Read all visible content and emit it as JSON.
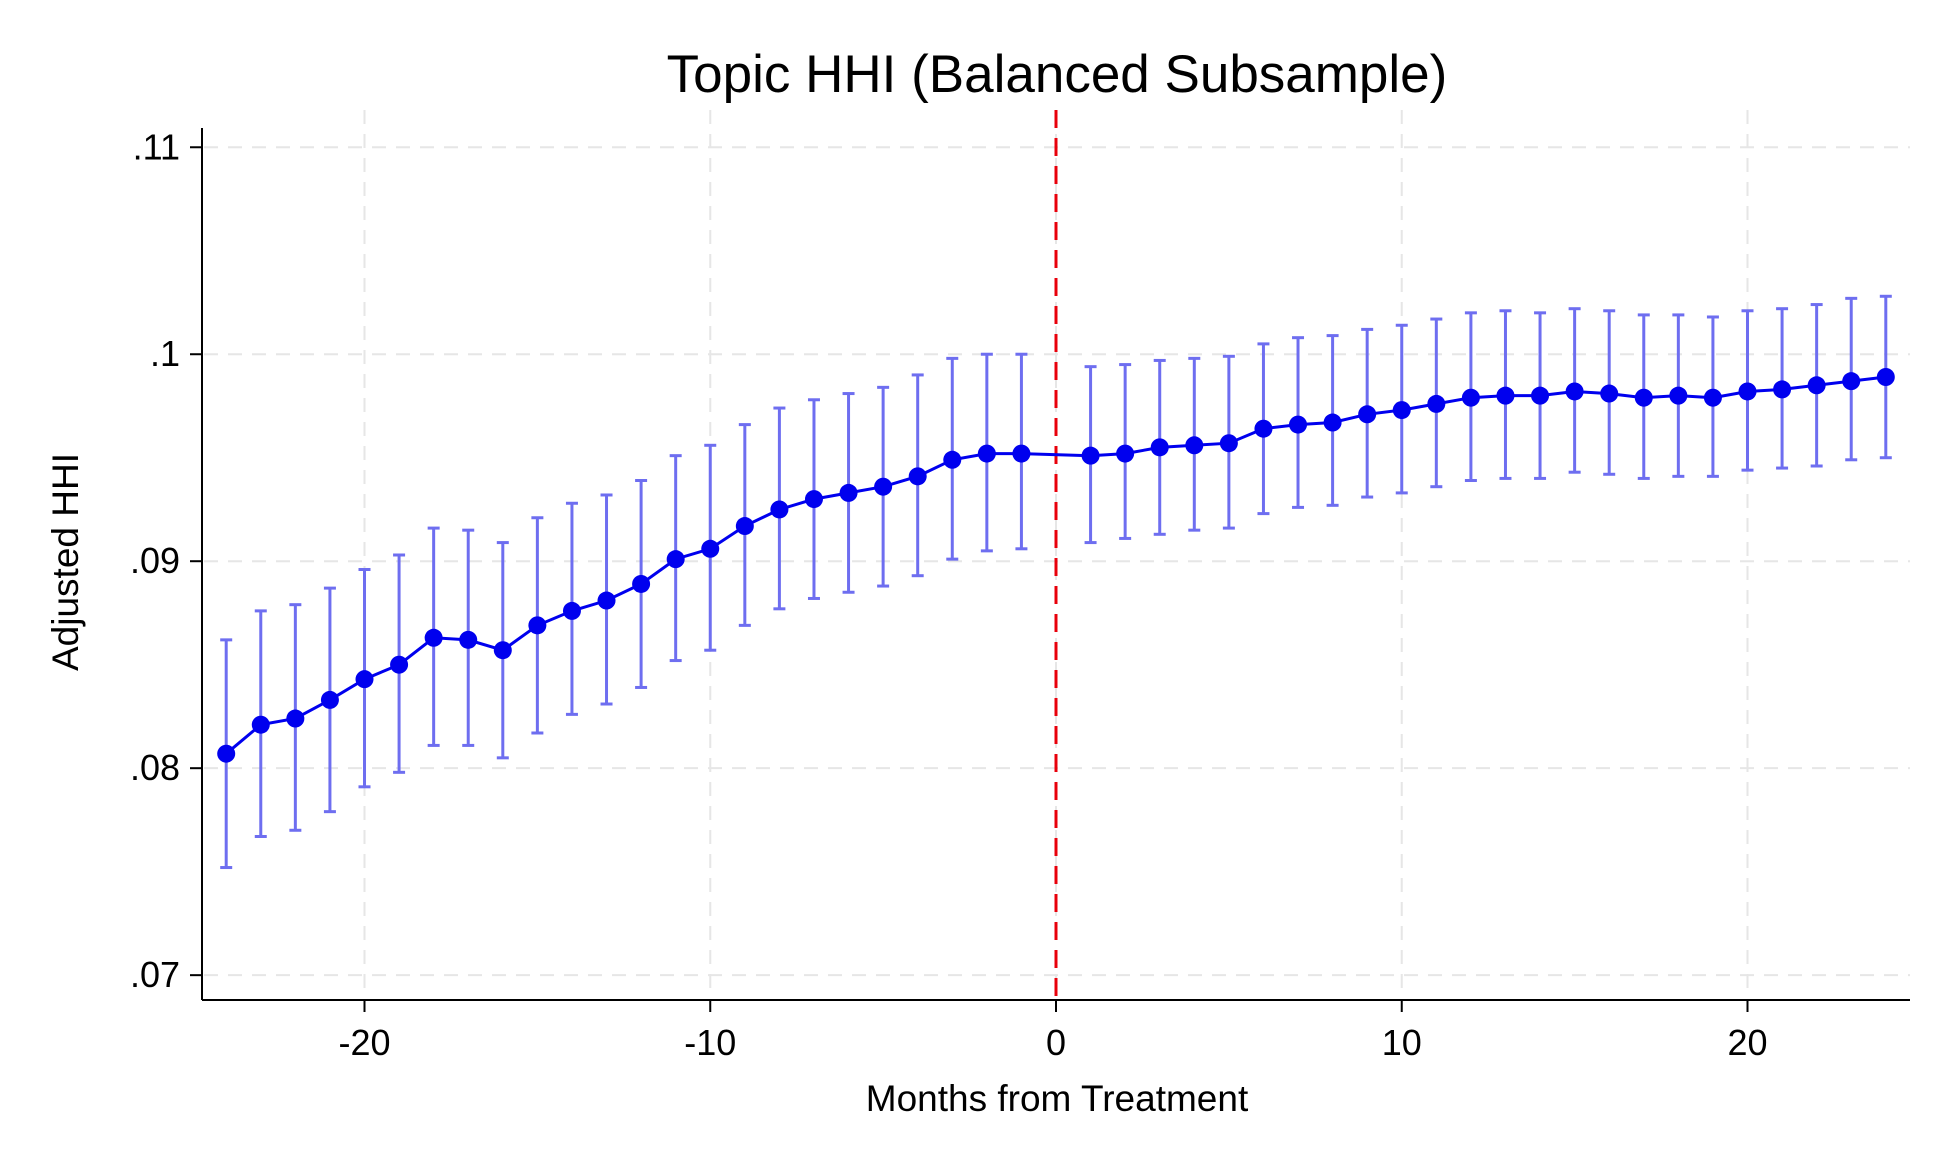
{
  "chart_data": {
    "type": "line",
    "title": "Topic HHI (Balanced Subsample)",
    "xlabel": "Months from Treatment",
    "ylabel": "Adjusted HHI",
    "xlim": [
      -24.7,
      24.7
    ],
    "ylim": [
      0.0688,
      0.1118
    ],
    "x_ticks": [
      -20,
      -10,
      0,
      10,
      20
    ],
    "x_tick_labels": [
      "-20",
      "-10",
      "0",
      "10",
      "20"
    ],
    "y_ticks": [
      0.07,
      0.08,
      0.09,
      0.1,
      0.11
    ],
    "y_tick_labels": [
      ".07",
      ".08",
      ".09",
      ".1",
      ".11"
    ],
    "grid": true,
    "treatment_line": {
      "x": 0,
      "style": "dashed",
      "color": "#e8000b"
    },
    "colors": {
      "series": "#0000ee",
      "error_bars": "#6e6ef0",
      "grid": "#e6e6e6"
    },
    "series": [
      {
        "x": [
          -24,
          -23,
          -22,
          -21,
          -20,
          -19,
          -18,
          -17,
          -16,
          -15,
          -14,
          -13,
          -12,
          -11,
          -10,
          -9,
          -8,
          -7,
          -6,
          -5,
          -4,
          -3,
          -2,
          -1,
          1,
          2,
          3,
          4,
          5,
          6,
          7,
          8,
          9,
          10,
          11,
          12,
          13,
          14,
          15,
          16,
          17,
          18,
          19,
          20,
          21,
          22,
          23,
          24
        ],
        "values": [
          0.0807,
          0.0821,
          0.0824,
          0.0833,
          0.0843,
          0.085,
          0.0863,
          0.0862,
          0.0857,
          0.0869,
          0.0876,
          0.0881,
          0.0889,
          0.0901,
          0.0906,
          0.0917,
          0.0925,
          0.093,
          0.0933,
          0.0936,
          0.0941,
          0.0949,
          0.0952,
          0.0952,
          0.0951,
          0.0952,
          0.0955,
          0.0956,
          0.0957,
          0.0964,
          0.0966,
          0.0967,
          0.0971,
          0.0973,
          0.0976,
          0.0979,
          0.098,
          0.098,
          0.0982,
          0.0981,
          0.0979,
          0.098,
          0.0979,
          0.0982,
          0.0983,
          0.0985,
          0.0987,
          0.0989
        ],
        "ci_low": [
          0.0752,
          0.0767,
          0.077,
          0.0779,
          0.0791,
          0.0798,
          0.0811,
          0.0811,
          0.0805,
          0.0817,
          0.0826,
          0.0831,
          0.0839,
          0.0852,
          0.0857,
          0.0869,
          0.0877,
          0.0882,
          0.0885,
          0.0888,
          0.0893,
          0.0901,
          0.0905,
          0.0906,
          0.0909,
          0.0911,
          0.0913,
          0.0915,
          0.0916,
          0.0923,
          0.0926,
          0.0927,
          0.0931,
          0.0933,
          0.0936,
          0.0939,
          0.094,
          0.094,
          0.0943,
          0.0942,
          0.094,
          0.0941,
          0.0941,
          0.0944,
          0.0945,
          0.0946,
          0.0949,
          0.095
        ],
        "ci_high": [
          0.0862,
          0.0876,
          0.0879,
          0.0887,
          0.0896,
          0.0903,
          0.0916,
          0.0915,
          0.0909,
          0.0921,
          0.0928,
          0.0932,
          0.0939,
          0.0951,
          0.0956,
          0.0966,
          0.0974,
          0.0978,
          0.0981,
          0.0984,
          0.099,
          0.0998,
          0.1,
          0.1,
          0.0994,
          0.0995,
          0.0997,
          0.0998,
          0.0999,
          0.1005,
          0.1008,
          0.1009,
          0.1012,
          0.1014,
          0.1017,
          0.102,
          0.1021,
          0.102,
          0.1022,
          0.1021,
          0.1019,
          0.1019,
          0.1018,
          0.1021,
          0.1022,
          0.1024,
          0.1027,
          0.1028
        ]
      }
    ]
  }
}
